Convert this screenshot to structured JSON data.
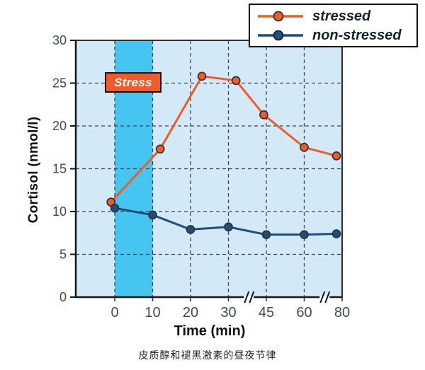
{
  "figure": {
    "caption": "皮质醇和褪黑激素的昼夜节律"
  },
  "annotations": {
    "stress_label": "Stress"
  },
  "legend": {
    "position": "top-right",
    "items": [
      {
        "label": "stressed",
        "color": "#f15a29"
      },
      {
        "label": "non-stressed",
        "color": "#1d4e7e"
      }
    ]
  },
  "colors": {
    "plot_bg": "#d3e9f8",
    "stress_band": "#46c5f0",
    "stressed": "#f15a29",
    "non_stressed": "#1d4e7e",
    "grid": "#444444",
    "axis": "#141414",
    "tick_label": "#3c4b5c",
    "stress_box_bg": "#f15a29",
    "stress_box_text": "#ffffff"
  },
  "chart_data": {
    "type": "line",
    "title": "",
    "xlabel": "Time (min)",
    "ylabel": "Cortisol (nmol/l)",
    "x_ticks": [
      0,
      10,
      20,
      30,
      45,
      60,
      80
    ],
    "y_ticks": [
      0,
      5,
      10,
      15,
      20,
      25,
      30
    ],
    "ylim": [
      0,
      30
    ],
    "grid": "dashed",
    "legend_position": "top-right",
    "axis_breaks_between": [
      [
        30,
        45
      ],
      [
        60,
        80
      ]
    ],
    "stress_band_x": [
      0,
      10
    ],
    "series": [
      {
        "name": "stressed",
        "color": "#f15a29",
        "x": [
          -1,
          12,
          23,
          33,
          44,
          60,
          77
        ],
        "values": [
          11.1,
          17.3,
          25.8,
          25.3,
          21.3,
          17.5,
          16.5
        ]
      },
      {
        "name": "non-stressed",
        "color": "#1d4e7e",
        "x": [
          0,
          10,
          20,
          30,
          45,
          60,
          77
        ],
        "values": [
          10.4,
          9.6,
          7.9,
          8.2,
          7.3,
          7.3,
          7.4
        ]
      }
    ]
  }
}
